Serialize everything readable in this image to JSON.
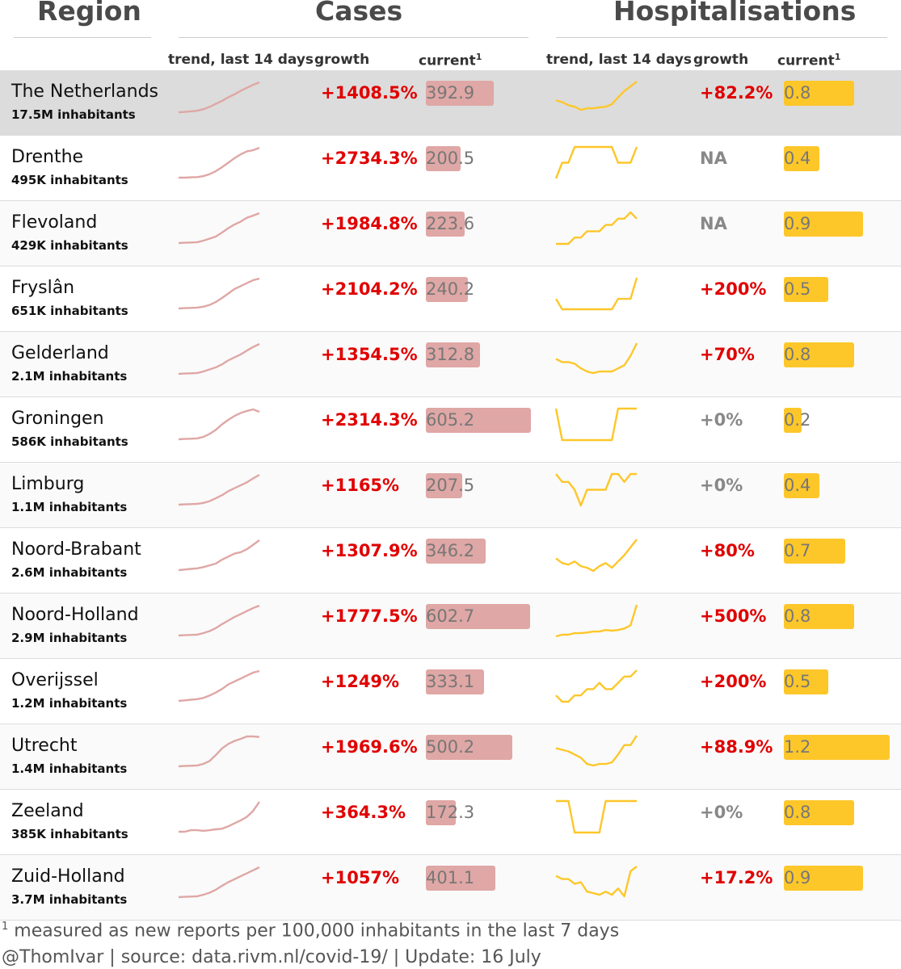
{
  "headers": {
    "region": "Region",
    "cases": "Cases",
    "hospitalisations": "Hospitalisations"
  },
  "subheaders": {
    "trend": "trend, last 14 days",
    "growth": "growth",
    "current": "current",
    "footnote_mark": "1"
  },
  "colors": {
    "cases_bar": "#dfa7a5",
    "cases_line": "#dfa7a5",
    "hosp_bar": "#fdc72a",
    "hosp_line": "#fdc72a",
    "growth_positive": "#e00000",
    "growth_neutral": "#888888",
    "highlight_row": "#dcdcdc"
  },
  "chart_data": {
    "type": "table",
    "scales": {
      "cases_current_max": 605.2,
      "hosp_current_max": 1.2
    },
    "rows": [
      {
        "name": "The Netherlands",
        "population": "17.5M inhabitants",
        "highlight": true,
        "cases_growth": "+1408.5%",
        "cases_current": 392.9,
        "hosp_growth": "+82.2%",
        "hosp_current": 0.8,
        "cases_trend": [
          0,
          1,
          3,
          5,
          10,
          18,
          28,
          38,
          50,
          60,
          72,
          82,
          92,
          100
        ],
        "hosp_trend": [
          40,
          35,
          25,
          20,
          10,
          15,
          15,
          18,
          20,
          28,
          50,
          70,
          85,
          100
        ]
      },
      {
        "name": "Drenthe",
        "population": "495K inhabitants",
        "cases_growth": "+2734.3%",
        "cases_current": 200.5,
        "hosp_growth": "NA",
        "hosp_current": 0.4,
        "cases_trend": [
          0,
          0,
          1,
          2,
          5,
          12,
          22,
          35,
          50,
          65,
          78,
          88,
          92,
          100
        ],
        "hosp_trend": [
          0,
          50,
          50,
          100,
          100,
          100,
          100,
          100,
          100,
          100,
          50,
          50,
          50,
          100
        ]
      },
      {
        "name": "Flevoland",
        "population": "429K inhabitants",
        "cases_growth": "+1984.8%",
        "cases_current": 223.6,
        "hosp_growth": "NA",
        "hosp_current": 0.9,
        "cases_trend": [
          0,
          1,
          2,
          3,
          8,
          15,
          22,
          35,
          50,
          62,
          72,
          85,
          92,
          100
        ],
        "hosp_trend": [
          0,
          0,
          0,
          20,
          20,
          40,
          40,
          40,
          60,
          60,
          80,
          80,
          100,
          80
        ]
      },
      {
        "name": "Fryslân",
        "population": "651K inhabitants",
        "cases_growth": "+2104.2%",
        "cases_current": 240.2,
        "hosp_growth": "+200%",
        "hosp_current": 0.5,
        "cases_trend": [
          0,
          1,
          2,
          3,
          6,
          12,
          22,
          35,
          50,
          65,
          75,
          85,
          95,
          100
        ],
        "hosp_trend": [
          33,
          0,
          0,
          0,
          0,
          0,
          0,
          0,
          0,
          0,
          33,
          33,
          33,
          100
        ]
      },
      {
        "name": "Gelderland",
        "population": "2.1M inhabitants",
        "cases_growth": "+1354.5%",
        "cases_current": 312.8,
        "hosp_growth": "+70%",
        "hosp_current": 0.8,
        "cases_trend": [
          0,
          1,
          2,
          3,
          8,
          15,
          22,
          32,
          45,
          55,
          65,
          78,
          90,
          100
        ],
        "hosp_trend": [
          50,
          40,
          40,
          35,
          20,
          10,
          5,
          10,
          10,
          10,
          20,
          30,
          60,
          100
        ]
      },
      {
        "name": "Groningen",
        "population": "586K inhabitants",
        "cases_growth": "+2314.3%",
        "cases_current": 605.2,
        "hosp_growth": "+0%",
        "hosp_current": 0.2,
        "cases_trend": [
          0,
          1,
          2,
          3,
          8,
          18,
          32,
          50,
          65,
          78,
          88,
          95,
          100,
          92
        ],
        "hosp_trend": [
          100,
          0,
          0,
          0,
          0,
          0,
          0,
          0,
          0,
          0,
          100,
          100,
          100,
          100
        ]
      },
      {
        "name": "Limburg",
        "population": "1.1M inhabitants",
        "cases_growth": "+1165%",
        "cases_current": 207.5,
        "hosp_growth": "+0%",
        "hosp_current": 0.4,
        "cases_trend": [
          0,
          1,
          2,
          3,
          6,
          12,
          22,
          32,
          45,
          55,
          65,
          75,
          88,
          100
        ],
        "hosp_trend": [
          100,
          75,
          75,
          50,
          0,
          50,
          50,
          50,
          50,
          100,
          100,
          75,
          100,
          100
        ]
      },
      {
        "name": "Noord-Brabant",
        "population": "2.6M inhabitants",
        "cases_growth": "+1307.9%",
        "cases_current": 346.2,
        "hosp_growth": "+80%",
        "hosp_current": 0.7,
        "cases_trend": [
          0,
          2,
          4,
          6,
          10,
          16,
          22,
          35,
          45,
          55,
          60,
          70,
          85,
          100
        ],
        "hosp_trend": [
          40,
          25,
          20,
          30,
          15,
          10,
          0,
          15,
          25,
          10,
          30,
          50,
          75,
          100
        ]
      },
      {
        "name": "Noord-Holland",
        "population": "2.9M inhabitants",
        "cases_growth": "+1777.5%",
        "cases_current": 602.7,
        "hosp_growth": "+500%",
        "hosp_current": 0.8,
        "cases_trend": [
          0,
          1,
          2,
          3,
          8,
          15,
          25,
          38,
          50,
          62,
          72,
          82,
          92,
          100
        ],
        "hosp_trend": [
          0,
          5,
          5,
          10,
          10,
          12,
          15,
          15,
          20,
          18,
          20,
          25,
          35,
          100
        ]
      },
      {
        "name": "Overijssel",
        "population": "1.2M inhabitants",
        "cases_growth": "+1249%",
        "cases_current": 333.1,
        "hosp_growth": "+200%",
        "hosp_current": 0.5,
        "cases_trend": [
          0,
          2,
          4,
          6,
          10,
          18,
          28,
          40,
          55,
          65,
          75,
          85,
          95,
          100
        ],
        "hosp_trend": [
          20,
          0,
          0,
          20,
          20,
          40,
          40,
          60,
          40,
          40,
          60,
          80,
          80,
          100
        ]
      },
      {
        "name": "Utrecht",
        "population": "1.4M inhabitants",
        "cases_growth": "+1969.6%",
        "cases_current": 500.2,
        "hosp_growth": "+88.9%",
        "hosp_current": 1.2,
        "cases_trend": [
          0,
          1,
          2,
          3,
          8,
          18,
          38,
          60,
          75,
          85,
          92,
          100,
          100,
          98
        ],
        "hosp_trend": [
          60,
          55,
          50,
          40,
          30,
          10,
          5,
          10,
          10,
          15,
          40,
          70,
          70,
          100
        ]
      },
      {
        "name": "Zeeland",
        "population": "385K inhabitants",
        "cases_growth": "+364.3%",
        "cases_current": 172.3,
        "hosp_growth": "+0%",
        "hosp_current": 0.8,
        "cases_trend": [
          0,
          0,
          5,
          5,
          3,
          5,
          8,
          10,
          18,
          28,
          38,
          50,
          70,
          100
        ],
        "hosp_trend": [
          100,
          100,
          100,
          0,
          0,
          0,
          0,
          0,
          100,
          100,
          100,
          100,
          100,
          100
        ]
      },
      {
        "name": "Zuid-Holland",
        "population": "3.7M inhabitants",
        "cases_growth": "+1057%",
        "cases_current": 401.1,
        "hosp_growth": "+17.2%",
        "hosp_current": 0.9,
        "cases_trend": [
          0,
          1,
          2,
          3,
          8,
          15,
          25,
          38,
          50,
          60,
          70,
          80,
          90,
          100
        ],
        "hosp_trend": [
          70,
          60,
          60,
          45,
          50,
          20,
          15,
          10,
          20,
          10,
          30,
          5,
          85,
          100
        ]
      }
    ]
  },
  "footer": {
    "footnote_mark": "1",
    "note": " measured as new reports per 100,000 inhabitants in the last 7 days",
    "credit": "@ThomIvar | source: data.rivm.nl/covid-19/ | Update: 16 July"
  }
}
